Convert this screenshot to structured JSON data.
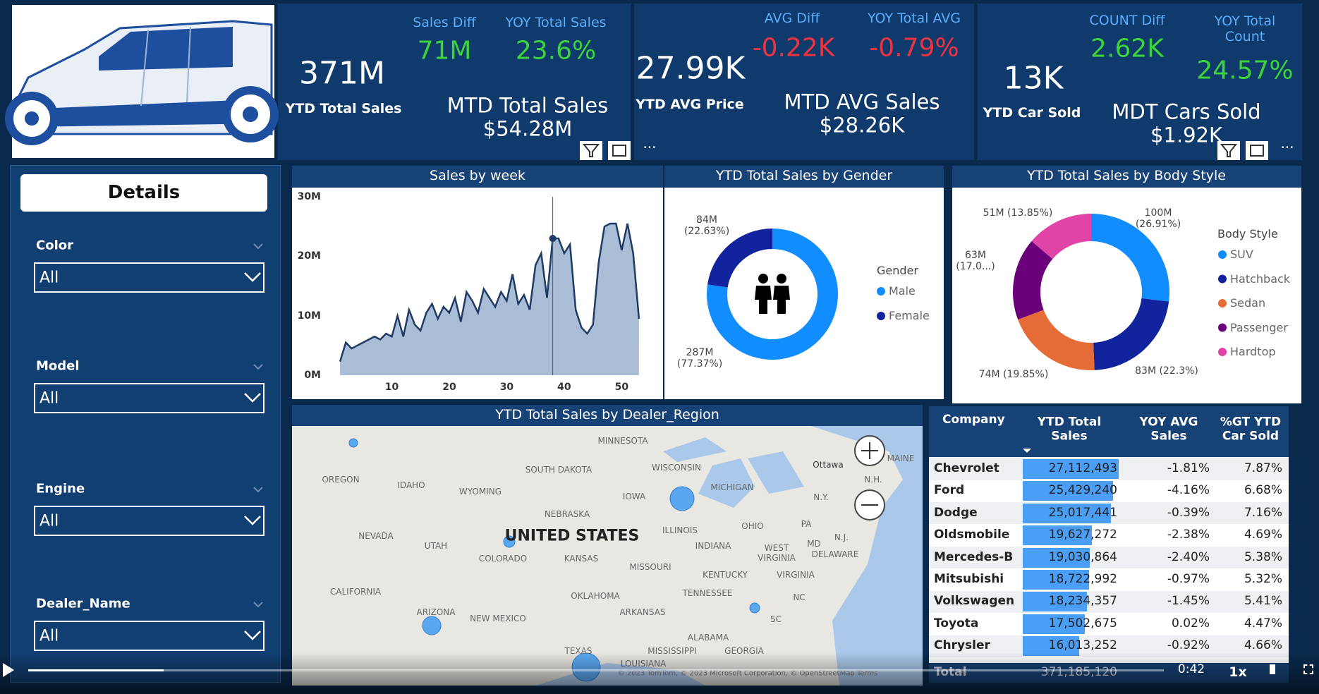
{
  "kpi_cards": [
    {
      "value": "371M",
      "label": "YTD Total Sales",
      "diff_label": "Sales Diff",
      "diff_value": "71M",
      "yoy_label": "YOY Total Sales",
      "yoy_value": "23.6%",
      "mtd": "MTD Total Sales $54.28M"
    },
    {
      "value": "27.99K",
      "label": "YTD AVG Price",
      "diff_label": "AVG Diff",
      "diff_value": "-0.22K",
      "yoy_label": "YOY Total AVG",
      "yoy_value": "-0.79%",
      "mtd": "MTD AVG Sales $28.26K"
    },
    {
      "value": "13K",
      "label": "YTD Car Sold",
      "diff_label": "COUNT Diff",
      "diff_value": "2.62K",
      "yoy_label": "YOY Total Count",
      "yoy_value": "24.57%",
      "mtd": "MDT Cars Sold $1.92K"
    }
  ],
  "filters": {
    "title": "Details",
    "items": [
      {
        "label": "Color",
        "value": "All"
      },
      {
        "label": "Model",
        "value": "All"
      },
      {
        "label": "Engine",
        "value": "All"
      },
      {
        "label": "Dealer_Name",
        "value": "All"
      }
    ]
  },
  "chart_data": [
    {
      "type": "area",
      "title": "Sales by week",
      "color": "#1f3b63",
      "fill": "#a9bdd6",
      "x": [
        1,
        2,
        3,
        4,
        5,
        6,
        7,
        8,
        9,
        10,
        11,
        12,
        13,
        14,
        15,
        16,
        17,
        18,
        19,
        20,
        21,
        22,
        23,
        24,
        25,
        26,
        27,
        28,
        29,
        30,
        31,
        32,
        33,
        34,
        35,
        36,
        37,
        38,
        39,
        40,
        41,
        42,
        43,
        44,
        45,
        46,
        47,
        48,
        49,
        50,
        51,
        52,
        53
      ],
      "values": [
        2300000,
        5500000,
        4500000,
        5000000,
        5500000,
        6000000,
        6500000,
        6000000,
        7000000,
        6500000,
        10000000,
        6500000,
        11000000,
        8500000,
        7500000,
        10500000,
        12000000,
        9500000,
        11500000,
        10500000,
        13000000,
        9000000,
        14000000,
        12500000,
        10500000,
        14500000,
        13000000,
        11500000,
        14000000,
        12500000,
        17000000,
        12000000,
        13500000,
        11000000,
        18500000,
        20500000,
        13000000,
        23000000,
        23000000,
        20500000,
        22000000,
        11000000,
        8000000,
        7000000,
        8500000,
        19000000,
        25000000,
        25500000,
        25500000,
        21000000,
        25500000,
        20500000,
        9500000
      ],
      "xlim": [
        0,
        54
      ],
      "xticks": [
        10,
        20,
        30,
        40,
        50
      ],
      "ylim": [
        0,
        30000000
      ],
      "yticks": [
        {
          "value": 0,
          "label": "0M"
        },
        {
          "value": 10000000,
          "label": "10M"
        },
        {
          "value": 20000000,
          "label": "20M"
        },
        {
          "value": 30000000,
          "label": "30M"
        }
      ]
    },
    {
      "type": "donut",
      "title": "YTD Total Sales by Gender",
      "legend_title": "Gender",
      "categories": [
        "Male",
        "Female"
      ],
      "values": [
        287000000,
        84000000
      ],
      "value_labels": [
        "287M (77.37%)",
        "84M (22.63%)"
      ],
      "colors": [
        "#118dff",
        "#12239e"
      ]
    },
    {
      "type": "donut",
      "title": "YTD Total Sales by Body Style",
      "legend_title": "Body Style",
      "categories": [
        "SUV",
        "Hatchback",
        "Sedan",
        "Passenger",
        "Hardtop"
      ],
      "values": [
        100000000,
        83000000,
        74000000,
        63000000,
        51000000
      ],
      "value_labels": [
        "100M (26.91%)",
        "83M (22.3%)",
        "74M (19.85%)",
        "63M (17.0...)",
        "51M (13.85%)"
      ],
      "colors": [
        "#118dff",
        "#12239e",
        "#e66c37",
        "#6b007b",
        "#e044a7"
      ]
    }
  ],
  "map": {
    "title": "YTD Total Sales by Dealer_Region",
    "labels": [
      "MINNESOTA",
      "OREGON",
      "IDAHO",
      "SOUTH DAKOTA",
      "WISCONSIN",
      "WYOMING",
      "MICHIGAN",
      "Ottawa",
      "MAINE",
      "N.H.",
      "IOWA",
      "NEBRASKA",
      "N.Y.",
      "UNITED STATES",
      "ILLINOIS",
      "OHIO",
      "PA",
      "NEVADA",
      "UTAH",
      "COLORADO",
      "KANSAS",
      "INDIANA",
      "WEST VIRGINIA",
      "MD",
      "N.J.",
      "DELAWARE",
      "MISSOURI",
      "KENTUCKY",
      "VIRGINIA",
      "CALIFORNIA",
      "OKLAHOMA",
      "TENNESSEE",
      "NC",
      "ARIZONA",
      "NEW MEXICO",
      "ARKANSAS",
      "SC",
      "ALABAMA",
      "TEXAS",
      "MISSISSIPPI",
      "GEORGIA",
      "LOUISIANA"
    ],
    "attribution": "© 2023 TomTom, © 2023 Microsoft Corporation, © OpenStreetMap Terms"
  },
  "table": {
    "columns": [
      "Company",
      "YTD Total Sales",
      "YOY AVG Sales",
      "%GT YTD Car Sold"
    ],
    "rows": [
      [
        "Chevrolet",
        "27,112,493",
        "-1.81%",
        "7.87%"
      ],
      [
        "Ford",
        "25,429,240",
        "-4.16%",
        "6.68%"
      ],
      [
        "Dodge",
        "25,017,441",
        "-0.39%",
        "7.16%"
      ],
      [
        "Oldsmobile",
        "19,627,272",
        "-2.38%",
        "4.69%"
      ],
      [
        "Mercedes-B",
        "19,030,864",
        "-2.40%",
        "5.38%"
      ],
      [
        "Mitsubishi",
        "18,722,992",
        "-0.97%",
        "5.32%"
      ],
      [
        "Volkswagen",
        "18,234,357",
        "-1.45%",
        "5.41%"
      ],
      [
        "Toyota",
        "17,502,675",
        "0.02%",
        "4.47%"
      ],
      [
        "Chrysler",
        "16,013,252",
        "-0.92%",
        "4.66%"
      ]
    ],
    "total": [
      "Total",
      "371,185,120"
    ]
  },
  "player": {
    "time": "0:42",
    "speed": "1x"
  }
}
